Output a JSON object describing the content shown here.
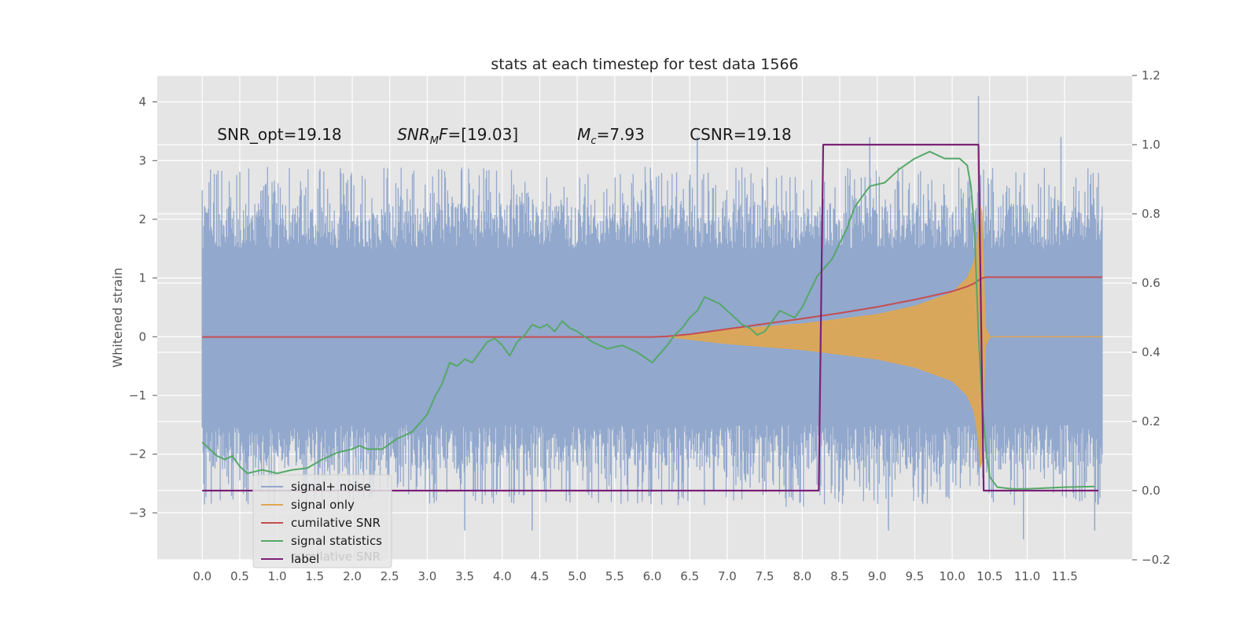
{
  "chart_data": {
    "type": "line",
    "title": "stats at each timestep for test data 1566",
    "ylabel": "Whitened strain",
    "xlim": [
      -0.6,
      12.4
    ],
    "ylim": [
      -3.8,
      4.45
    ],
    "y2lim": [
      -0.2,
      1.2
    ],
    "x_ticks": [
      0.0,
      0.5,
      1.0,
      1.5,
      2.0,
      2.5,
      3.0,
      3.5,
      4.0,
      4.5,
      5.0,
      5.5,
      6.0,
      6.5,
      7.0,
      7.5,
      8.0,
      8.5,
      9.0,
      9.5,
      10.0,
      10.5,
      11.0,
      11.5
    ],
    "x_tick_labels": [
      "0.0",
      "0.5",
      "1.0",
      "1.5",
      "2.0",
      "2.5",
      "3.0",
      "3.5",
      "4.0",
      "4.5",
      "5.0",
      "5.5",
      "6.0",
      "6.5",
      "7.0",
      "7.5",
      "8.0",
      "8.5",
      "9.0",
      "9.5",
      "10.0",
      "10.5",
      "11.0",
      "11.5"
    ],
    "y_ticks": [
      -3,
      -2,
      -1,
      0,
      1,
      2,
      3,
      4
    ],
    "y_tick_labels": [
      "−3",
      "−2",
      "−1",
      "0",
      "1",
      "2",
      "3",
      "4"
    ],
    "y2_ticks": [
      -0.2,
      0.0,
      0.2,
      0.4,
      0.6,
      0.8,
      1.0,
      1.2
    ],
    "y2_tick_labels": [
      "−0.2",
      "0.0",
      "0.2",
      "0.4",
      "0.6",
      "0.8",
      "1.0",
      "1.2"
    ],
    "grid": true,
    "legend_position": "lower-left",
    "annotations": [
      {
        "id": "snr-opt",
        "x": 0.2,
        "y": 3.35,
        "parts": [
          {
            "t": "SNR_opt=19.18"
          }
        ]
      },
      {
        "id": "snr-mf",
        "x": 2.6,
        "y": 3.35,
        "parts": [
          {
            "t": "SNR",
            "style": "italic"
          },
          {
            "t": "M",
            "style": "italic",
            "sub": true
          },
          {
            "t": "F",
            "style": "italic"
          },
          {
            "t": "=[19.03]"
          }
        ]
      },
      {
        "id": "chirp-mass",
        "x": 5.0,
        "y": 3.35,
        "parts": [
          {
            "t": "M",
            "style": "italic"
          },
          {
            "t": "c",
            "style": "italic",
            "sub": true
          },
          {
            "t": "=7.93"
          }
        ]
      },
      {
        "id": "csnr",
        "x": 6.5,
        "y": 3.35,
        "parts": [
          {
            "t": "CSNR=19.18"
          }
        ]
      }
    ],
    "series": [
      {
        "name": "signal+ noise",
        "axis": "left",
        "color": "#92a8cd",
        "kind": "noise",
        "x_range": [
          0.0,
          12.0
        ],
        "typical_range": [
          -1.5,
          1.5
        ],
        "peak_envelope": [
          [
            0.0,
            -2.9,
            2.9
          ],
          [
            12.0,
            -2.9,
            2.9
          ]
        ],
        "spikes": [
          [
            6.0,
            -1.2,
            2.4
          ],
          [
            10.35,
            -1.0,
            4.1
          ],
          [
            6.6,
            -1.0,
            3.4
          ],
          [
            8.9,
            -1.0,
            3.4
          ],
          [
            11.45,
            -1.0,
            3.4
          ],
          [
            3.5,
            -3.3,
            1.0
          ],
          [
            4.4,
            -3.3,
            1.0
          ],
          [
            9.15,
            -3.3,
            1.0
          ],
          [
            10.95,
            -3.45,
            1.0
          ],
          [
            11.9,
            -3.3,
            1.0
          ]
        ]
      },
      {
        "name": "signal only",
        "axis": "left",
        "color": "#dfa751",
        "kind": "chirp",
        "x_range": [
          6.2,
          10.55
        ],
        "envelope": [
          [
            6.2,
            0.0
          ],
          [
            7.0,
            0.12
          ],
          [
            7.5,
            0.17
          ],
          [
            8.0,
            0.22
          ],
          [
            8.5,
            0.3
          ],
          [
            9.0,
            0.38
          ],
          [
            9.5,
            0.52
          ],
          [
            10.0,
            0.75
          ],
          [
            10.2,
            1.0
          ],
          [
            10.3,
            1.3
          ],
          [
            10.35,
            1.8
          ],
          [
            10.38,
            2.3
          ],
          [
            10.41,
            2.0
          ],
          [
            10.43,
            0.2
          ],
          [
            10.5,
            0.0
          ]
        ]
      },
      {
        "name": "cumilative SNR",
        "axis": "right",
        "color": "#c44e52",
        "x": [
          0.0,
          6.0,
          6.2,
          6.5,
          7.0,
          7.5,
          8.0,
          8.5,
          9.0,
          9.5,
          10.0,
          10.2,
          10.3,
          10.35,
          10.4,
          10.45,
          12.0
        ],
        "values": [
          0.444,
          0.444,
          0.446,
          0.452,
          0.467,
          0.482,
          0.497,
          0.513,
          0.531,
          0.552,
          0.576,
          0.59,
          0.6,
          0.608,
          0.614,
          0.617,
          0.617
        ]
      },
      {
        "name": "signal statistics",
        "axis": "right",
        "color": "#55a868",
        "x": [
          0.0,
          0.1,
          0.2,
          0.3,
          0.4,
          0.5,
          0.6,
          0.7,
          0.8,
          1.0,
          1.2,
          1.4,
          1.6,
          1.8,
          2.0,
          2.1,
          2.2,
          2.4,
          2.6,
          2.8,
          3.0,
          3.1,
          3.2,
          3.3,
          3.4,
          3.5,
          3.6,
          3.7,
          3.8,
          3.9,
          4.0,
          4.1,
          4.2,
          4.3,
          4.4,
          4.5,
          4.6,
          4.7,
          4.8,
          4.9,
          5.0,
          5.2,
          5.4,
          5.6,
          5.8,
          6.0,
          6.2,
          6.3,
          6.4,
          6.5,
          6.6,
          6.7,
          6.8,
          6.9,
          7.0,
          7.1,
          7.2,
          7.3,
          7.4,
          7.5,
          7.6,
          7.7,
          7.8,
          7.9,
          8.0,
          8.2,
          8.4,
          8.6,
          8.7,
          8.9,
          9.1,
          9.3,
          9.5,
          9.7,
          9.9,
          10.1,
          10.2,
          10.25,
          10.3,
          10.35,
          10.4,
          10.45,
          10.5,
          10.6,
          10.8,
          11.0,
          11.5,
          11.9
        ],
        "values": [
          0.14,
          0.12,
          0.1,
          0.09,
          0.1,
          0.07,
          0.05,
          0.055,
          0.06,
          0.05,
          0.06,
          0.065,
          0.09,
          0.11,
          0.12,
          0.13,
          0.12,
          0.12,
          0.15,
          0.17,
          0.22,
          0.27,
          0.31,
          0.37,
          0.36,
          0.38,
          0.37,
          0.4,
          0.43,
          0.44,
          0.42,
          0.39,
          0.43,
          0.45,
          0.48,
          0.47,
          0.48,
          0.46,
          0.49,
          0.47,
          0.46,
          0.43,
          0.41,
          0.42,
          0.4,
          0.37,
          0.42,
          0.45,
          0.47,
          0.5,
          0.52,
          0.56,
          0.55,
          0.54,
          0.52,
          0.5,
          0.48,
          0.47,
          0.45,
          0.46,
          0.49,
          0.52,
          0.51,
          0.5,
          0.53,
          0.62,
          0.67,
          0.76,
          0.82,
          0.88,
          0.89,
          0.93,
          0.96,
          0.98,
          0.96,
          0.96,
          0.94,
          0.88,
          0.74,
          0.45,
          0.25,
          0.12,
          0.04,
          0.01,
          0.005,
          0.005,
          0.01,
          0.012
        ]
      },
      {
        "name": "label",
        "axis": "right",
        "color": "#7b2178",
        "x": [
          0.0,
          8.22,
          8.28,
          10.35,
          10.42,
          11.95
        ],
        "values": [
          0.0,
          0.0,
          1.0,
          1.0,
          0.0,
          0.0
        ]
      }
    ],
    "legend_shadow_text": "cumilative SNR"
  }
}
